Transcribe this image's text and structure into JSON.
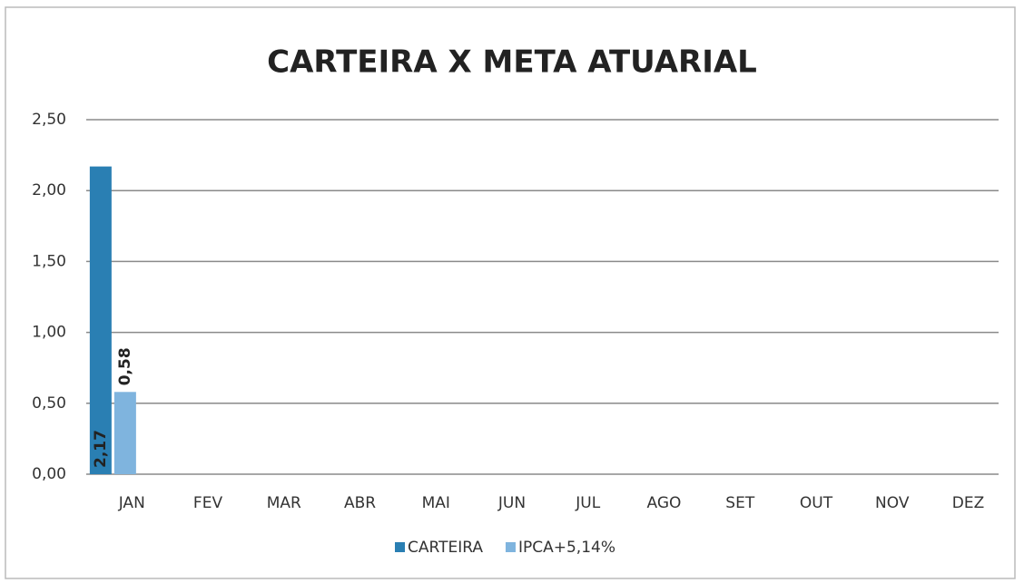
{
  "chart_data": {
    "type": "bar",
    "title": "CARTEIRA X META ATUARIAL",
    "categories": [
      "JAN",
      "FEV",
      "MAR",
      "ABR",
      "MAI",
      "JUN",
      "JUL",
      "AGO",
      "SET",
      "OUT",
      "NOV",
      "DEZ"
    ],
    "series": [
      {
        "name": "CARTEIRA",
        "color": "#2a7fb3",
        "values": [
          2.17,
          null,
          null,
          null,
          null,
          null,
          null,
          null,
          null,
          null,
          null,
          null
        ],
        "value_labels": [
          "2,17",
          null,
          null,
          null,
          null,
          null,
          null,
          null,
          null,
          null,
          null,
          null
        ]
      },
      {
        "name": "IPCA+5,14%",
        "color": "#7fb4de",
        "values": [
          0.58,
          null,
          null,
          null,
          null,
          null,
          null,
          null,
          null,
          null,
          null,
          null
        ],
        "value_labels": [
          "0,58",
          null,
          null,
          null,
          null,
          null,
          null,
          null,
          null,
          null,
          null,
          null
        ]
      }
    ],
    "ylim": [
      0,
      2.5
    ],
    "yticks": [
      {
        "value": 0,
        "label": "0,00"
      },
      {
        "value": 0.5,
        "label": "0,50"
      },
      {
        "value": 1,
        "label": "1,00"
      },
      {
        "value": 1.5,
        "label": "1,50"
      },
      {
        "value": 2,
        "label": "2,00"
      },
      {
        "value": 2.5,
        "label": "2,50"
      }
    ],
    "grid": true,
    "legend": "bottom"
  }
}
